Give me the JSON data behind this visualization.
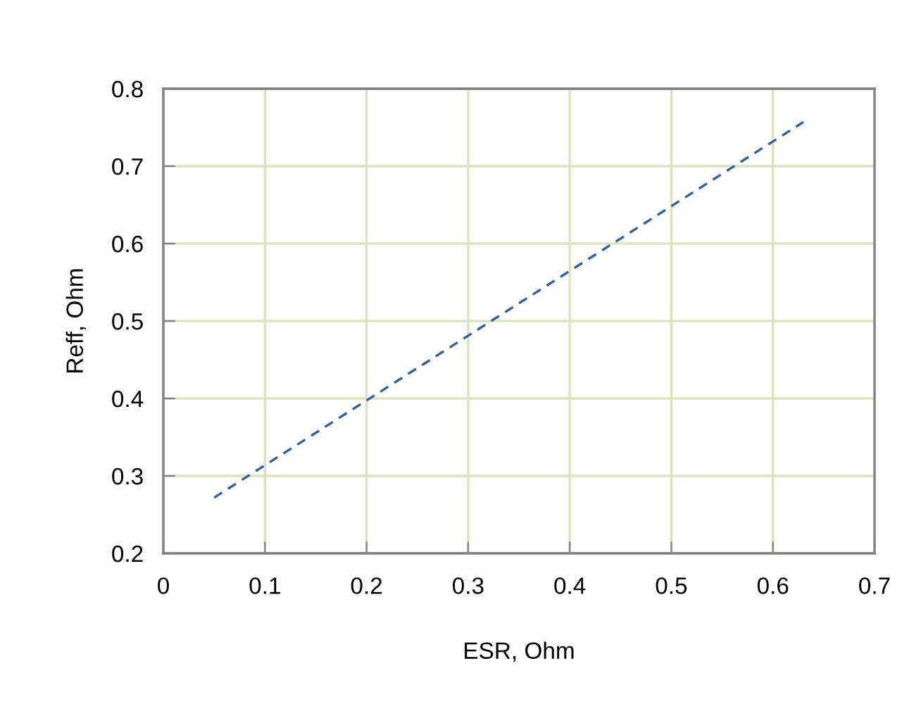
{
  "chart_data": {
    "type": "line",
    "xlabel": "ESR, Ohm",
    "ylabel": "Reff, Ohm",
    "x": [
      0.05,
      0.63
    ],
    "series": [
      {
        "color": "#2f5f9e",
        "values": [
          0.272,
          0.757
        ]
      }
    ],
    "line_style": "dashed",
    "marker": "none",
    "xlim": [
      0,
      0.7
    ],
    "xticks": [
      0,
      0.1,
      0.2,
      0.3,
      0.4,
      0.5,
      0.6,
      0.7
    ],
    "ylim": [
      0.2,
      0.8
    ],
    "yticks": [
      0.2,
      0.3,
      0.4,
      0.5,
      0.6,
      0.7,
      0.8
    ],
    "grid": true
  }
}
